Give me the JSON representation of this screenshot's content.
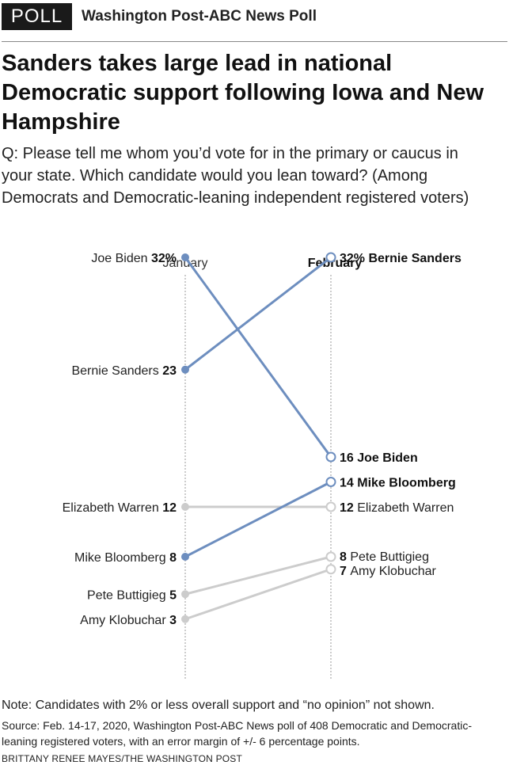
{
  "header": {
    "badge": "POLL",
    "source_name": "Washington Post-ABC News Poll"
  },
  "title": "Sanders takes large lead in national Democratic support following Iowa and New Hampshire",
  "question": "Q: Please tell me whom you’d vote for in the primary or caucus in your state. Which candidate would you lean toward? (Among Democrats and Democratic-leaning independent registered voters)",
  "colors": {
    "highlight": "#6d8ebf",
    "muted": "#cccccc",
    "guide": "#999999"
  },
  "chart_data": {
    "type": "slope",
    "x": [
      "January",
      "February"
    ],
    "ylim": [
      0,
      35
    ],
    "series": [
      {
        "name": "Joe Biden",
        "values": [
          32,
          16
        ],
        "labels": [
          "32%",
          "16"
        ],
        "highlight": true
      },
      {
        "name": "Bernie Sanders",
        "values": [
          23,
          32
        ],
        "labels": [
          "23",
          "32%"
        ],
        "highlight": true
      },
      {
        "name": "Elizabeth Warren",
        "values": [
          12,
          12
        ],
        "labels": [
          "12",
          "12"
        ],
        "highlight": false
      },
      {
        "name": "Mike Bloomberg",
        "values": [
          8,
          14
        ],
        "labels": [
          "8",
          "14"
        ],
        "highlight": true
      },
      {
        "name": "Pete Buttigieg",
        "values": [
          5,
          8
        ],
        "labels": [
          "5",
          "8"
        ],
        "highlight": false
      },
      {
        "name": "Amy Klobuchar",
        "values": [
          3,
          7
        ],
        "labels": [
          "3",
          "7"
        ],
        "highlight": false
      }
    ]
  },
  "note": "Note: Candidates with 2% or less overall support and “no opinion” not shown.",
  "source": "Source: Feb. 14-17, 2020, Washington Post-ABC News poll of 408 Democratic and Democratic-leaning registered voters, with an error margin of +/- 6 percentage points.",
  "credit": "BRITTANY RENEE MAYES/THE WASHINGTON POST"
}
